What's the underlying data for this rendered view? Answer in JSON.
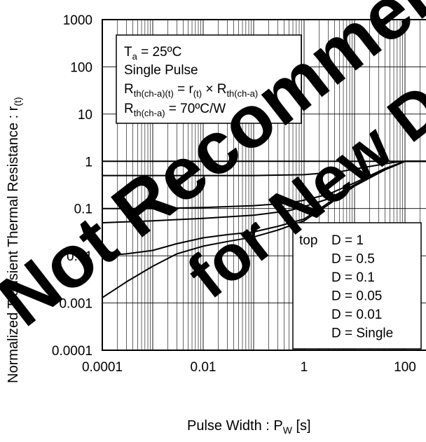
{
  "chart_data": {
    "type": "line",
    "xlabel": {
      "main": "Pulse Width : P",
      "sub": "W",
      "unit": " [s]"
    },
    "ylabel": {
      "main": "Normalized Transient Thermal Resistance : r",
      "sub": "(t)"
    },
    "x_scale": "log",
    "y_scale": "log",
    "xlim": [
      0.0001,
      1000
    ],
    "ylim": [
      0.0001,
      1000
    ],
    "x_ticks": [
      0.0001,
      0.01,
      1,
      100
    ],
    "x_tick_labels": [
      "0.0001",
      "0.01",
      "1",
      "100"
    ],
    "y_ticks": [
      0.0001,
      0.001,
      0.01,
      0.1,
      1,
      10,
      100,
      1000
    ],
    "y_tick_labels": [
      "0.0001",
      "0.001",
      "0.01",
      "0.1",
      "1",
      "10",
      "100",
      "1000"
    ],
    "grid": true,
    "legend_title": "top",
    "series": [
      {
        "name": "D = 1",
        "x": [
          0.0001,
          0.01,
          1,
          100,
          1000
        ],
        "y": [
          1,
          1,
          1,
          1,
          1
        ]
      },
      {
        "name": "D = 0.5",
        "x": [
          0.0001,
          0.01,
          0.1,
          1,
          5,
          20,
          60,
          100,
          1000
        ],
        "y": [
          0.5,
          0.5,
          0.5,
          0.52,
          0.6,
          0.78,
          0.95,
          1,
          1
        ]
      },
      {
        "name": "D = 0.1",
        "x": [
          0.0001,
          0.001,
          0.01,
          0.1,
          0.5,
          1,
          3,
          10,
          40,
          100,
          1000
        ],
        "y": [
          0.1,
          0.1,
          0.105,
          0.115,
          0.13,
          0.15,
          0.2,
          0.35,
          0.7,
          1,
          1
        ]
      },
      {
        "name": "D = 0.05",
        "x": [
          0.0001,
          0.001,
          0.01,
          0.1,
          0.5,
          1,
          3,
          10,
          40,
          100,
          1000
        ],
        "y": [
          0.05,
          0.055,
          0.062,
          0.072,
          0.09,
          0.11,
          0.16,
          0.32,
          0.68,
          1,
          1
        ]
      },
      {
        "name": "D = 0.01",
        "x": [
          0.0001,
          0.0003,
          0.001,
          0.003,
          0.01,
          0.03,
          0.1,
          0.3,
          1,
          3,
          10,
          40,
          100,
          1000
        ],
        "y": [
          0.01,
          0.011,
          0.013,
          0.018,
          0.024,
          0.028,
          0.032,
          0.042,
          0.06,
          0.13,
          0.3,
          0.66,
          1,
          1
        ]
      },
      {
        "name": "D = Single",
        "x": [
          0.0001,
          0.0003,
          0.001,
          0.003,
          0.01,
          0.03,
          0.1,
          0.3,
          1,
          3,
          10,
          40,
          100,
          1000
        ],
        "y": [
          0.0013,
          0.0028,
          0.006,
          0.011,
          0.016,
          0.02,
          0.025,
          0.035,
          0.055,
          0.12,
          0.3,
          0.66,
          1,
          1
        ]
      }
    ],
    "annotations": {
      "ta": {
        "main": "T",
        "sub": "a",
        "rest": " = 25ºC"
      },
      "pulse": "Single Pulse",
      "formula": {
        "r": "R",
        "r_sub": "th(ch-a)(t)",
        "eq": " = r",
        "eq_sub": "(t)",
        "times": " × R",
        "times_sub": "th(ch-a)"
      },
      "rth": {
        "main": "R",
        "sub": "th(ch-a)",
        "rest": " = 70ºC/W"
      }
    },
    "watermark": [
      "Not Recommended",
      "for New Design"
    ]
  }
}
